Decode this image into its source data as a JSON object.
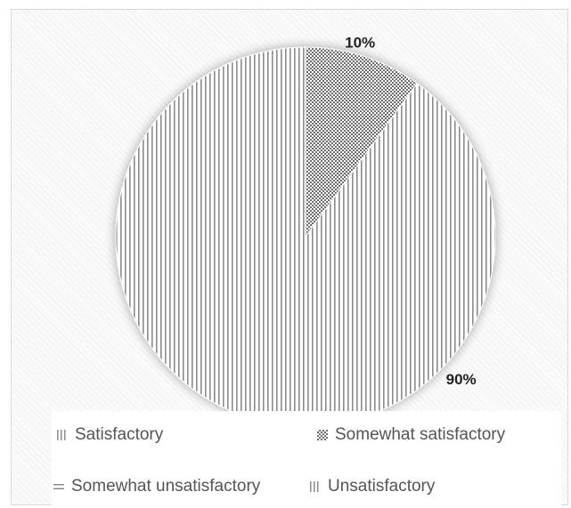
{
  "chart_data": {
    "type": "pie",
    "slices": [
      {
        "name": "Satisfactory",
        "value": 0,
        "pattern": "vertical-lines",
        "color": "#9a9a9a"
      },
      {
        "name": "Somewhat satisfactory",
        "value": 10,
        "pattern": "checker",
        "color": "#777777"
      },
      {
        "name": "Somewhat unsatisfactory",
        "value": 0,
        "pattern": "dash",
        "color": "#9a9a9a"
      },
      {
        "name": "Unsatisfactory",
        "value": 90,
        "pattern": "vertical-lines",
        "color": "#9a9a9a"
      }
    ],
    "data_labels": [
      "10%",
      "90%"
    ],
    "legend": [
      "Satisfactory",
      "Somewhat satisfactory",
      "Somewhat unsatisfactory",
      "Unsatisfactory"
    ],
    "legend_position": "bottom"
  }
}
